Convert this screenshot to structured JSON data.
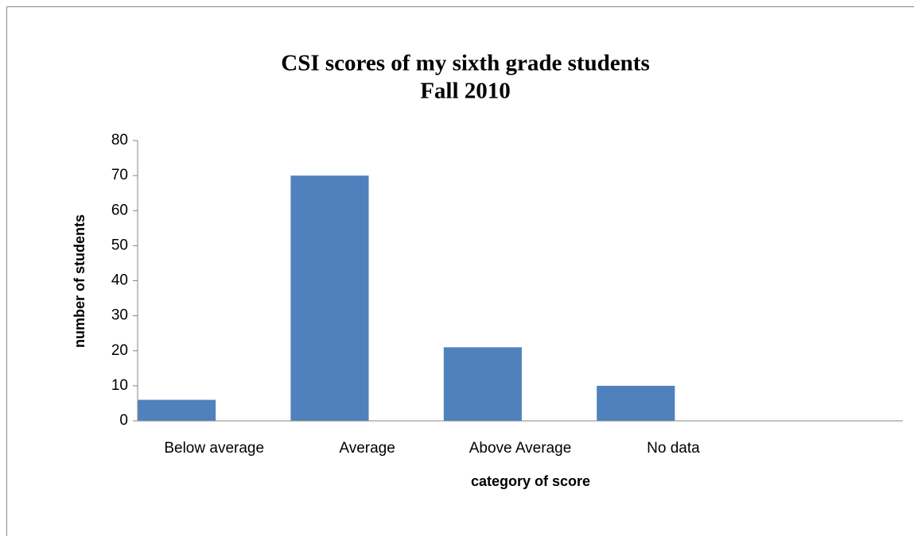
{
  "chart_data": {
    "type": "bar",
    "title": "CSI scores of my sixth grade students",
    "subtitle": "Fall 2010",
    "x_label": "category of score",
    "y_label": "number of students",
    "categories": [
      "Below average",
      "Average",
      "Above Average",
      "No data",
      null
    ],
    "values": [
      6,
      70,
      21,
      10,
      null
    ],
    "color": "#4f81bd",
    "ylim": [
      0,
      80
    ],
    "yticks": [
      0,
      10,
      20,
      30,
      40,
      50,
      60,
      70,
      80
    ],
    "grid": false
  }
}
